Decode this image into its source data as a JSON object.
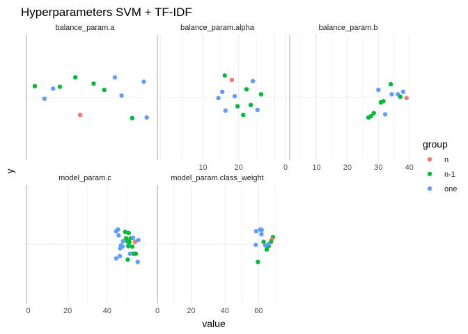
{
  "chart_data": {
    "type": "scatter",
    "title": "Hyperparameters SVM + TF-IDF",
    "xlabel": "value",
    "ylabel": "y",
    "legend": {
      "title": "group",
      "placement": "right",
      "entries": [
        {
          "name": "n",
          "color": "#F8766D"
        },
        {
          "name": "n-1",
          "color": "#00BA38"
        },
        {
          "name": "one",
          "color": "#619CFF"
        }
      ]
    },
    "grid": true,
    "panels": [
      {
        "strip": "balance_param.a",
        "xlim": [
          -0.3,
          12.7
        ],
        "ylim": [
          -1,
          1
        ],
        "xticks": [],
        "xtick_labels": [],
        "points": [
          {
            "group": "n-1",
            "x": 1.0,
            "y": 0.18
          },
          {
            "group": "one",
            "x": 2.0,
            "y": -0.02
          },
          {
            "group": "one",
            "x": 2.9,
            "y": 0.14
          },
          {
            "group": "n-1",
            "x": 3.6,
            "y": 0.17
          },
          {
            "group": "n-1",
            "x": 5.2,
            "y": 0.32
          },
          {
            "group": "n",
            "x": 5.7,
            "y": -0.28
          },
          {
            "group": "n-1",
            "x": 7.1,
            "y": 0.22
          },
          {
            "group": "n-1",
            "x": 8.2,
            "y": 0.12
          },
          {
            "group": "one",
            "x": 9.3,
            "y": 0.32
          },
          {
            "group": "one",
            "x": 10.0,
            "y": 0.03
          },
          {
            "group": "n-1",
            "x": 11.1,
            "y": -0.33
          },
          {
            "group": "one",
            "x": 12.3,
            "y": 0.25
          },
          {
            "group": "one",
            "x": 12.6,
            "y": -0.32
          }
        ]
      },
      {
        "strip": "balance_param.alpha",
        "xlim": [
          -4.0,
          32.0
        ],
        "ylim": [
          -1,
          1
        ],
        "xticks": [
          -2,
          10,
          20,
          30
        ],
        "xtick_labels": [
          "",
          "10",
          "20",
          ""
        ],
        "points": [
          {
            "group": "one",
            "x": 14.3,
            "y": -0.01
          },
          {
            "group": "one",
            "x": 15.4,
            "y": 0.09
          },
          {
            "group": "one",
            "x": 16.3,
            "y": -0.21
          },
          {
            "group": "n-1",
            "x": 16.1,
            "y": 0.35
          },
          {
            "group": "n",
            "x": 18.1,
            "y": 0.28
          },
          {
            "group": "one",
            "x": 18.9,
            "y": 0.02
          },
          {
            "group": "n-1",
            "x": 19.7,
            "y": -0.14
          },
          {
            "group": "n-1",
            "x": 21.3,
            "y": -0.28
          },
          {
            "group": "n-1",
            "x": 22.2,
            "y": 0.13
          },
          {
            "group": "n-1",
            "x": 23.4,
            "y": -0.12
          },
          {
            "group": "one",
            "x": 24.0,
            "y": 0.26
          },
          {
            "group": "one",
            "x": 25.3,
            "y": -0.2
          },
          {
            "group": "n-1",
            "x": 26.3,
            "y": 0.05
          }
        ]
      },
      {
        "strip": "balance_param.b",
        "xlim": [
          0,
          40.5
        ],
        "ylim": [
          -1,
          1
        ],
        "xticks": [
          0,
          10,
          20,
          30,
          40
        ],
        "xtick_labels": [
          "0",
          "10",
          "20",
          "30",
          "40"
        ],
        "points": [
          {
            "group": "n-1",
            "x": 26.8,
            "y": -0.32
          },
          {
            "group": "n-1",
            "x": 27.6,
            "y": -0.3
          },
          {
            "group": "n-1",
            "x": 28.5,
            "y": -0.25
          },
          {
            "group": "one",
            "x": 30.0,
            "y": 0.12
          },
          {
            "group": "n-1",
            "x": 30.8,
            "y": -0.08
          },
          {
            "group": "n-1",
            "x": 31.6,
            "y": -0.06
          },
          {
            "group": "one",
            "x": 32.2,
            "y": -0.27
          },
          {
            "group": "one",
            "x": 34.3,
            "y": 0.05
          },
          {
            "group": "n-1",
            "x": 34.0,
            "y": 0.21
          },
          {
            "group": "one",
            "x": 36.3,
            "y": 0.05
          },
          {
            "group": "n-1",
            "x": 37.1,
            "y": 0.01
          },
          {
            "group": "one",
            "x": 38.0,
            "y": 0.09
          },
          {
            "group": "n",
            "x": 39.1,
            "y": -0.01
          }
        ]
      },
      {
        "strip": "model_param.c",
        "xlim": [
          -3,
          60.5
        ],
        "ylim": [
          -1,
          1
        ],
        "xticks": [
          0,
          20,
          40
        ],
        "xtick_labels": [
          "0",
          "20",
          "40"
        ],
        "points": [
          {
            "group": "one",
            "x": 44.5,
            "y": 0.22
          },
          {
            "group": "one",
            "x": 45.5,
            "y": 0.25
          },
          {
            "group": "one",
            "x": 45.8,
            "y": 0.15
          },
          {
            "group": "one",
            "x": 44.6,
            "y": -0.24
          },
          {
            "group": "one",
            "x": 47.0,
            "y": -0.02
          },
          {
            "group": "one",
            "x": 46.6,
            "y": -0.07
          },
          {
            "group": "one",
            "x": 48.0,
            "y": 0.05
          },
          {
            "group": "one",
            "x": 47.8,
            "y": -0.04
          },
          {
            "group": "one",
            "x": 46.4,
            "y": -0.2
          },
          {
            "group": "n-1",
            "x": 49.1,
            "y": 0.21
          },
          {
            "group": "n-1",
            "x": 49.6,
            "y": 0.1
          },
          {
            "group": "n-1",
            "x": 50.3,
            "y": 0.05
          },
          {
            "group": "n-1",
            "x": 50.9,
            "y": 0.19
          },
          {
            "group": "n-1",
            "x": 51.2,
            "y": 0.03
          },
          {
            "group": "n-1",
            "x": 50.7,
            "y": -0.03
          },
          {
            "group": "n-1",
            "x": 51.9,
            "y": 0.1
          },
          {
            "group": "n-1",
            "x": 52.7,
            "y": -0.04
          },
          {
            "group": "n-1",
            "x": 53.3,
            "y": -0.16
          },
          {
            "group": "n-1",
            "x": 54.5,
            "y": -0.16
          },
          {
            "group": "n-1",
            "x": 50.4,
            "y": -0.26
          },
          {
            "group": "n",
            "x": 54.1,
            "y": 0.04
          },
          {
            "group": "one",
            "x": 53.1,
            "y": 0.11
          },
          {
            "group": "one",
            "x": 51.6,
            "y": -0.16
          },
          {
            "group": "one",
            "x": 55.8,
            "y": 0.07
          },
          {
            "group": "one",
            "x": 55.5,
            "y": -0.3
          }
        ]
      },
      {
        "strip": "model_param.class_weight",
        "xlim": [
          -2.5,
          73.5
        ],
        "ylim": [
          -1,
          1
        ],
        "xticks": [
          0,
          20,
          40,
          60
        ],
        "xtick_labels": [
          "0",
          "20",
          "40",
          "60"
        ],
        "points": [
          {
            "group": "one",
            "x": 58.6,
            "y": 0.22
          },
          {
            "group": "one",
            "x": 61.0,
            "y": 0.25
          },
          {
            "group": "one",
            "x": 61.8,
            "y": 0.24
          },
          {
            "group": "one",
            "x": 58.3,
            "y": -0.01
          },
          {
            "group": "one",
            "x": 61.7,
            "y": 0.17
          },
          {
            "group": "n-1",
            "x": 63.0,
            "y": 0.04
          },
          {
            "group": "one",
            "x": 64.0,
            "y": -0.02
          },
          {
            "group": "n-1",
            "x": 64.8,
            "y": -0.09
          },
          {
            "group": "n-1",
            "x": 66.0,
            "y": -0.03
          },
          {
            "group": "n-1",
            "x": 68.5,
            "y": 0.12
          },
          {
            "group": "n",
            "x": 67.9,
            "y": 0.08
          },
          {
            "group": "n-1",
            "x": 67.3,
            "y": 0.04
          },
          {
            "group": "n-1",
            "x": 59.6,
            "y": -0.3
          },
          {
            "group": "one",
            "x": 65.8,
            "y": 0.0
          }
        ]
      }
    ]
  }
}
